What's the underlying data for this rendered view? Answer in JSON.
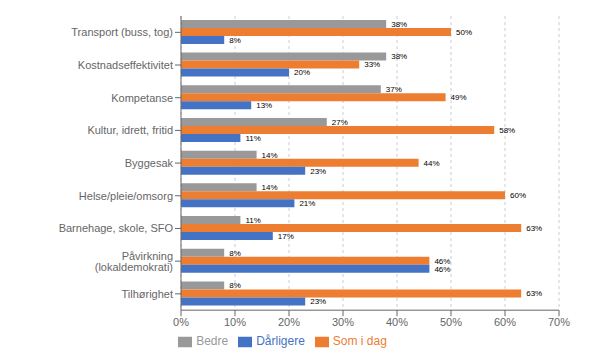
{
  "chart_data": {
    "type": "bar",
    "orientation": "horizontal",
    "categories": [
      "Transport (buss, tog)",
      "Kostnadseffektivitet",
      "Kompetanse",
      "Kultur, idrett, fritid",
      "Byggesak",
      "Helse/pleie/omsorg",
      "Barnehage, skole, SFO",
      "Påvirkning (lokaldemokrati)",
      "Tilhørighet"
    ],
    "series": [
      {
        "name": "Bedre",
        "color": "#999999",
        "values": [
          38,
          38,
          37,
          27,
          14,
          14,
          11,
          8,
          8
        ],
        "value_labels": [
          "38%",
          "38%",
          "37%",
          "27%",
          "14%",
          "14%",
          "11%",
          "8%",
          "8%"
        ]
      },
      {
        "name": "Som i dag",
        "color": "#ED7D31",
        "values": [
          50,
          33,
          49,
          58,
          44,
          60,
          63,
          46,
          63
        ],
        "value_labels": [
          "50%",
          "33%",
          "49%",
          "58%",
          "44%",
          "60%",
          "63%",
          "46%",
          "63%"
        ]
      },
      {
        "name": "Dårligere",
        "color": "#4472C4",
        "values": [
          8,
          20,
          13,
          11,
          23,
          21,
          17,
          46,
          23
        ],
        "value_labels": [
          "8%",
          "20%",
          "13%",
          "11%",
          "23%",
          "21%",
          "17%",
          "46%",
          "23%"
        ]
      }
    ],
    "xlim": [
      0,
      70
    ],
    "xticks": [
      {
        "value": 0,
        "label": "0%"
      },
      {
        "value": 10,
        "label": "10%"
      },
      {
        "value": 20,
        "label": "20%"
      },
      {
        "value": 30,
        "label": "30%"
      },
      {
        "value": 40,
        "label": "40%"
      },
      {
        "value": 50,
        "label": "50%"
      },
      {
        "value": 60,
        "label": "60%"
      },
      {
        "value": 70,
        "label": "70%"
      }
    ],
    "grid": true,
    "legend": "bottom",
    "data_labels": true
  }
}
